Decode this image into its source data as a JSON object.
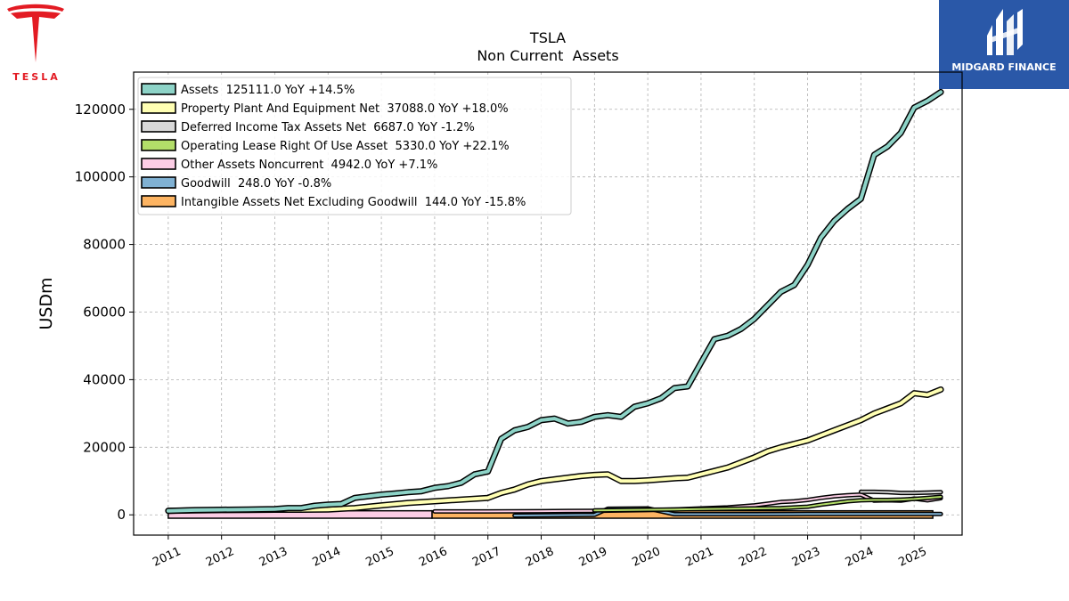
{
  "logos": {
    "left_wordmark": "TESLA",
    "right_brand": "MIDGARD FINANCE"
  },
  "chart_data": {
    "type": "line",
    "title": "TSLA",
    "subtitle": "Non Current  Assets",
    "ylabel": "USDm",
    "xlim": [
      2010.35,
      2025.9
    ],
    "ylim": [
      -6000,
      131000
    ],
    "yticks": [
      0,
      20000,
      40000,
      60000,
      80000,
      100000,
      120000
    ],
    "xticks": [
      "2011",
      "2012",
      "2013",
      "2014",
      "2015",
      "2016",
      "2017",
      "2018",
      "2019",
      "2020",
      "2021",
      "2022",
      "2023",
      "2024",
      "2025"
    ],
    "grid": true,
    "legend_position": "top-left",
    "series": [
      {
        "name": "Assets  125111.0 YoY +14.5%",
        "color": "#8dd3c7",
        "points": [
          [
            2011.0,
            1200
          ],
          [
            2011.5,
            1400
          ],
          [
            2012.0,
            1500
          ],
          [
            2012.5,
            1600
          ],
          [
            2013.0,
            1700
          ],
          [
            2013.25,
            2000
          ],
          [
            2013.5,
            2000
          ],
          [
            2013.75,
            2700
          ],
          [
            2014.0,
            3000
          ],
          [
            2014.25,
            3200
          ],
          [
            2014.5,
            5000
          ],
          [
            2014.75,
            5500
          ],
          [
            2015.0,
            6000
          ],
          [
            2015.25,
            6300
          ],
          [
            2015.5,
            6700
          ],
          [
            2015.75,
            7000
          ],
          [
            2016.0,
            8000
          ],
          [
            2016.25,
            8500
          ],
          [
            2016.5,
            9500
          ],
          [
            2016.75,
            12000
          ],
          [
            2017.0,
            12800
          ],
          [
            2017.25,
            22500
          ],
          [
            2017.5,
            25000
          ],
          [
            2017.75,
            26000
          ],
          [
            2018.0,
            28000
          ],
          [
            2018.25,
            28500
          ],
          [
            2018.5,
            27000
          ],
          [
            2018.75,
            27500
          ],
          [
            2019.0,
            29000
          ],
          [
            2019.25,
            29500
          ],
          [
            2019.5,
            29000
          ],
          [
            2019.75,
            32000
          ],
          [
            2020.0,
            33000
          ],
          [
            2020.25,
            34500
          ],
          [
            2020.5,
            37500
          ],
          [
            2020.75,
            38000
          ],
          [
            2021.0,
            45000
          ],
          [
            2021.25,
            52000
          ],
          [
            2021.5,
            53000
          ],
          [
            2021.75,
            55000
          ],
          [
            2022.0,
            58000
          ],
          [
            2022.25,
            62000
          ],
          [
            2022.5,
            66000
          ],
          [
            2022.75,
            68000
          ],
          [
            2023.0,
            74000
          ],
          [
            2023.25,
            82000
          ],
          [
            2023.5,
            87000
          ],
          [
            2023.75,
            90500
          ],
          [
            2024.0,
            93500
          ],
          [
            2024.25,
            106500
          ],
          [
            2024.5,
            109000
          ],
          [
            2024.75,
            113000
          ],
          [
            2025.0,
            120500
          ],
          [
            2025.25,
            122500
          ],
          [
            2025.5,
            125111
          ]
        ]
      },
      {
        "name": "Property Plant And Equipment Net  37088.0 YoY +18.0%",
        "color": "#ffffb3",
        "points": [
          [
            2011.0,
            1200
          ],
          [
            2011.5,
            1300
          ],
          [
            2012.0,
            1400
          ],
          [
            2012.5,
            1450
          ],
          [
            2013.0,
            1500
          ],
          [
            2013.5,
            1500
          ],
          [
            2014.0,
            1600
          ],
          [
            2014.5,
            2000
          ],
          [
            2015.0,
            2800
          ],
          [
            2015.5,
            3500
          ],
          [
            2016.0,
            4000
          ],
          [
            2016.5,
            4500
          ],
          [
            2017.0,
            5000
          ],
          [
            2017.25,
            6500
          ],
          [
            2017.5,
            7500
          ],
          [
            2017.75,
            9000
          ],
          [
            2018.0,
            10000
          ],
          [
            2018.25,
            10500
          ],
          [
            2018.5,
            11000
          ],
          [
            2018.75,
            11500
          ],
          [
            2019.0,
            11800
          ],
          [
            2019.25,
            12000
          ],
          [
            2019.5,
            10000
          ],
          [
            2019.75,
            10000
          ],
          [
            2020.0,
            10200
          ],
          [
            2020.25,
            10500
          ],
          [
            2020.5,
            10800
          ],
          [
            2020.75,
            11000
          ],
          [
            2021.0,
            12000
          ],
          [
            2021.25,
            13000
          ],
          [
            2021.5,
            14000
          ],
          [
            2021.75,
            15500
          ],
          [
            2022.0,
            17000
          ],
          [
            2022.25,
            18800
          ],
          [
            2022.5,
            20000
          ],
          [
            2022.75,
            21000
          ],
          [
            2023.0,
            22000
          ],
          [
            2023.25,
            23500
          ],
          [
            2023.5,
            25000
          ],
          [
            2023.75,
            26500
          ],
          [
            2024.0,
            28000
          ],
          [
            2024.25,
            30000
          ],
          [
            2024.5,
            31500
          ],
          [
            2024.75,
            33000
          ],
          [
            2025.0,
            36000
          ],
          [
            2025.25,
            35500
          ],
          [
            2025.5,
            37088
          ]
        ]
      },
      {
        "name": "Deferred Income Tax Assets Net  6687.0 YoY -1.2%",
        "color": "#d9d9d9",
        "points": [
          [
            2024.0,
            6800
          ],
          [
            2024.25,
            6800
          ],
          [
            2024.5,
            6700
          ],
          [
            2024.75,
            6500
          ],
          [
            2025.0,
            6500
          ],
          [
            2025.25,
            6600
          ],
          [
            2025.5,
            6687
          ]
        ]
      },
      {
        "name": "Operating Lease Right Of Use Asset  5330.0 YoY +22.1%",
        "color": "#b3de69",
        "points": [
          [
            2019.0,
            1300
          ],
          [
            2019.5,
            1400
          ],
          [
            2020.0,
            1500
          ],
          [
            2020.5,
            1600
          ],
          [
            2021.0,
            1700
          ],
          [
            2021.5,
            1800
          ],
          [
            2022.0,
            1900
          ],
          [
            2022.5,
            2000
          ],
          [
            2022.75,
            2200
          ],
          [
            2023.0,
            2400
          ],
          [
            2023.25,
            3000
          ],
          [
            2023.5,
            3500
          ],
          [
            2023.75,
            4000
          ],
          [
            2024.0,
            4300
          ],
          [
            2024.25,
            4400
          ],
          [
            2024.5,
            4400
          ],
          [
            2024.75,
            4500
          ],
          [
            2025.0,
            4700
          ],
          [
            2025.25,
            5000
          ],
          [
            2025.5,
            5330
          ]
        ]
      },
      {
        "name": "Other Assets Noncurrent  4942.0 YoY +7.1%",
        "color": "#fccde5",
        "bar": {
          "x0": 2011.0,
          "x1": 2015.95,
          "y0": -1000,
          "y1": 1200
        },
        "points": [
          [
            2016.0,
            1000
          ],
          [
            2017.0,
            1000
          ],
          [
            2018.0,
            1100
          ],
          [
            2019.0,
            1200
          ],
          [
            2020.0,
            1400
          ],
          [
            2020.5,
            1600
          ],
          [
            2021.0,
            1900
          ],
          [
            2021.5,
            2200
          ],
          [
            2022.0,
            2800
          ],
          [
            2022.25,
            3300
          ],
          [
            2022.5,
            3800
          ],
          [
            2022.75,
            4000
          ],
          [
            2023.0,
            4400
          ],
          [
            2023.25,
            5000
          ],
          [
            2023.5,
            5500
          ],
          [
            2023.75,
            5800
          ],
          [
            2024.0,
            6000
          ],
          [
            2024.25,
            4200
          ],
          [
            2024.5,
            4300
          ],
          [
            2024.75,
            4200
          ],
          [
            2025.0,
            4800
          ],
          [
            2025.25,
            4300
          ],
          [
            2025.5,
            4942
          ]
        ]
      },
      {
        "name": "Goodwill  248.0 YoY -0.8%",
        "color": "#80b1d3",
        "points": [
          [
            2017.5,
            -200
          ],
          [
            2019.0,
            0
          ],
          [
            2019.25,
            1800
          ],
          [
            2020.0,
            1900
          ],
          [
            2020.5,
            200
          ],
          [
            2021.0,
            200
          ],
          [
            2022.0,
            200
          ],
          [
            2023.0,
            250
          ],
          [
            2024.0,
            250
          ],
          [
            2025.0,
            248
          ],
          [
            2025.5,
            248
          ]
        ]
      },
      {
        "name": "Intangible Assets Net Excluding Goodwill  144.0 YoY -15.8%",
        "color": "#fdb462",
        "bar": {
          "x0": 2015.95,
          "x1": 2025.35,
          "y0": -1000,
          "y1": 1200
        },
        "points": []
      }
    ]
  }
}
